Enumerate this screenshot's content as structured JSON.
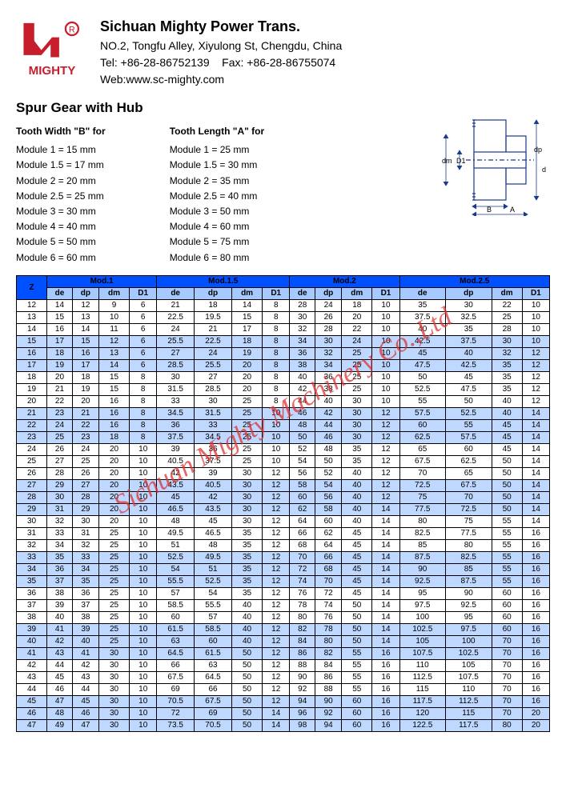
{
  "company": {
    "name": "Sichuan Mighty Power Trans.",
    "address": "NO.2, Tongfu Alley, Xiyulong St, Chengdu, China",
    "tel": "Tel: +86-28-86752139",
    "fax": "Fax: +86-28-86755074",
    "web": "Web:www.sc-mighty.com",
    "logo_text": "MIGHTY",
    "logo_color": "#c81e2b"
  },
  "title": "Spur Gear with Hub",
  "watermark": "Sichuan Mighty Machinery Co.,Ltd",
  "specs": {
    "width": {
      "title": "Tooth Width \"B\" for",
      "items": [
        "Module 1 = 15 mm",
        "Module 1.5 = 17 mm",
        "Module 2 = 20 mm",
        "Module 2.5 = 25 mm",
        "Module 3 = 30 mm",
        "Module 4 = 40 mm",
        "Module 5 = 50 mm",
        "Module 6 = 60 mm"
      ]
    },
    "length": {
      "title": "Tooth Length \"A\" for",
      "items": [
        "Module 1 = 25 mm",
        "Module 1.5 = 30 mm",
        "Module 2 = 35 mm",
        "Module 2.5 = 40 mm",
        "Module 3 = 50 mm",
        "Module 4 = 60 mm",
        "Module 5 = 75 mm",
        "Module 6 = 80 mm"
      ]
    }
  },
  "diagram_labels": {
    "dm": "dm",
    "D1": "D1",
    "dp": "dp",
    "de": "de",
    "B": "B",
    "A": "A"
  },
  "table": {
    "z_header": "Z",
    "mod_headers": [
      "Mod.1",
      "Mod.1.5",
      "Mod.2",
      "Mod.2.5"
    ],
    "sub_headers": [
      "de",
      "dp",
      "dm",
      "D1"
    ],
    "shaded_z": [
      15,
      16,
      17,
      21,
      22,
      23,
      27,
      28,
      29,
      33,
      34,
      35,
      39,
      40,
      41,
      45,
      46,
      47
    ],
    "rows": [
      {
        "z": 12,
        "c": [
          14,
          12,
          9,
          6,
          21.0,
          18.0,
          14,
          8,
          28,
          24,
          18,
          10,
          35.0,
          30.0,
          22,
          10
        ]
      },
      {
        "z": 13,
        "c": [
          15,
          13,
          10,
          6,
          22.5,
          19.5,
          15,
          8,
          30,
          26,
          20,
          10,
          37.5,
          32.5,
          25,
          10
        ]
      },
      {
        "z": 14,
        "c": [
          16,
          14,
          11,
          6,
          24.0,
          21.0,
          17,
          8,
          32,
          28,
          22,
          10,
          40.0,
          35.0,
          28,
          10
        ]
      },
      {
        "z": 15,
        "c": [
          17,
          15,
          12,
          6,
          25.5,
          22.5,
          18,
          8,
          34,
          30,
          24,
          10,
          42.5,
          37.5,
          30,
          10
        ]
      },
      {
        "z": 16,
        "c": [
          18,
          16,
          13,
          6,
          27.0,
          24.0,
          19,
          8,
          36,
          32,
          25,
          10,
          45.0,
          40.0,
          32,
          12
        ]
      },
      {
        "z": 17,
        "c": [
          19,
          17,
          14,
          6,
          28.5,
          25.5,
          20,
          8,
          38,
          34,
          25,
          10,
          47.5,
          42.5,
          35,
          12
        ]
      },
      {
        "z": 18,
        "c": [
          20,
          18,
          15,
          8,
          30.0,
          27.0,
          20,
          8,
          40,
          36,
          25,
          10,
          50.0,
          45.0,
          35,
          12
        ]
      },
      {
        "z": 19,
        "c": [
          21,
          19,
          15,
          8,
          31.5,
          28.5,
          20,
          8,
          42,
          38,
          25,
          10,
          52.5,
          47.5,
          35,
          12
        ]
      },
      {
        "z": 20,
        "c": [
          22,
          20,
          16,
          8,
          33.0,
          30.0,
          25,
          8,
          44,
          40,
          30,
          10,
          55.0,
          50.0,
          40,
          12
        ]
      },
      {
        "z": 21,
        "c": [
          23,
          21,
          16,
          8,
          34.5,
          31.5,
          25,
          10,
          46,
          42,
          30,
          12,
          57.5,
          52.5,
          40,
          14
        ]
      },
      {
        "z": 22,
        "c": [
          24,
          22,
          16,
          8,
          36.0,
          33.0,
          25,
          10,
          48,
          44,
          30,
          12,
          60.0,
          55.0,
          45,
          14
        ]
      },
      {
        "z": 23,
        "c": [
          25,
          23,
          18,
          8,
          37.5,
          34.5,
          25,
          10,
          50,
          46,
          30,
          12,
          62.5,
          57.5,
          45,
          14
        ]
      },
      {
        "z": 24,
        "c": [
          26,
          24,
          20,
          10,
          39.0,
          36.0,
          25,
          10,
          52,
          48,
          35,
          12,
          65.0,
          60.0,
          45,
          14
        ]
      },
      {
        "z": 25,
        "c": [
          27,
          25,
          20,
          10,
          40.5,
          37.5,
          25,
          10,
          54,
          50,
          35,
          12,
          67.5,
          62.5,
          50,
          14
        ]
      },
      {
        "z": 26,
        "c": [
          28,
          26,
          20,
          10,
          42.0,
          39.0,
          30,
          12,
          56,
          52,
          40,
          12,
          70.0,
          65.0,
          50,
          14
        ]
      },
      {
        "z": 27,
        "c": [
          29,
          27,
          20,
          10,
          43.5,
          40.5,
          30,
          12,
          58,
          54,
          40,
          12,
          72.5,
          67.5,
          50,
          14
        ]
      },
      {
        "z": 28,
        "c": [
          30,
          28,
          20,
          10,
          45.0,
          42.0,
          30,
          12,
          60,
          56,
          40,
          12,
          75.0,
          70.0,
          50,
          14
        ]
      },
      {
        "z": 29,
        "c": [
          31,
          29,
          20,
          10,
          46.5,
          43.5,
          30,
          12,
          62,
          58,
          40,
          14,
          77.5,
          72.5,
          50,
          14
        ]
      },
      {
        "z": 30,
        "c": [
          32,
          30,
          20,
          10,
          48.0,
          45.0,
          30,
          12,
          64,
          60,
          40,
          14,
          80.0,
          75.0,
          55,
          14
        ]
      },
      {
        "z": 31,
        "c": [
          33,
          31,
          25,
          10,
          49.5,
          46.5,
          35,
          12,
          66,
          62,
          45,
          14,
          82.5,
          77.5,
          55,
          16
        ]
      },
      {
        "z": 32,
        "c": [
          34,
          32,
          25,
          10,
          51.0,
          48.0,
          35,
          12,
          68,
          64,
          45,
          14,
          85.0,
          80.0,
          55,
          16
        ]
      },
      {
        "z": 33,
        "c": [
          35,
          33,
          25,
          10,
          52.5,
          49.5,
          35,
          12,
          70,
          66,
          45,
          14,
          87.5,
          82.5,
          55,
          16
        ]
      },
      {
        "z": 34,
        "c": [
          36,
          34,
          25,
          10,
          54.0,
          51.0,
          35,
          12,
          72,
          68,
          45,
          14,
          90.0,
          85.0,
          55,
          16
        ]
      },
      {
        "z": 35,
        "c": [
          37,
          35,
          25,
          10,
          55.5,
          52.5,
          35,
          12,
          74,
          70,
          45,
          14,
          92.5,
          87.5,
          55,
          16
        ]
      },
      {
        "z": 36,
        "c": [
          38,
          36,
          25,
          10,
          57.0,
          54.0,
          35,
          12,
          76,
          72,
          45,
          14,
          95.0,
          90.0,
          60,
          16
        ]
      },
      {
        "z": 37,
        "c": [
          39,
          37,
          25,
          10,
          58.5,
          55.5,
          40,
          12,
          78,
          74,
          50,
          14,
          97.5,
          92.5,
          60,
          16
        ]
      },
      {
        "z": 38,
        "c": [
          40,
          38,
          25,
          10,
          60.0,
          57.0,
          40,
          12,
          80,
          76,
          50,
          14,
          100.0,
          95.0,
          60,
          16
        ]
      },
      {
        "z": 39,
        "c": [
          41,
          39,
          25,
          10,
          61.5,
          58.5,
          40,
          12,
          82,
          78,
          50,
          14,
          102.5,
          97.5,
          60,
          16
        ]
      },
      {
        "z": 40,
        "c": [
          42,
          40,
          25,
          10,
          63.0,
          60.0,
          40,
          12,
          84,
          80,
          50,
          14,
          105.0,
          100.0,
          70,
          16
        ]
      },
      {
        "z": 41,
        "c": [
          43,
          41,
          30,
          10,
          64.5,
          61.5,
          50,
          12,
          86,
          82,
          55,
          16,
          107.5,
          102.5,
          70,
          16
        ]
      },
      {
        "z": 42,
        "c": [
          44,
          42,
          30,
          10,
          66.0,
          63.0,
          50,
          12,
          88,
          84,
          55,
          16,
          110.0,
          105.0,
          70,
          16
        ]
      },
      {
        "z": 43,
        "c": [
          45,
          43,
          30,
          10,
          67.5,
          64.5,
          50,
          12,
          90,
          86,
          55,
          16,
          112.5,
          107.5,
          70,
          16
        ]
      },
      {
        "z": 44,
        "c": [
          46,
          44,
          30,
          10,
          69.0,
          66.0,
          50,
          12,
          92,
          88,
          55,
          16,
          115.0,
          110.0,
          70,
          16
        ]
      },
      {
        "z": 45,
        "c": [
          47,
          45,
          30,
          10,
          70.5,
          67.5,
          50,
          12,
          94,
          90,
          60,
          16,
          117.5,
          112.5,
          70,
          16
        ]
      },
      {
        "z": 46,
        "c": [
          48,
          46,
          30,
          10,
          72.0,
          69.0,
          50,
          14,
          96,
          92,
          60,
          16,
          120.0,
          115.0,
          70,
          20
        ]
      },
      {
        "z": 47,
        "c": [
          49,
          47,
          30,
          10,
          73.5,
          70.5,
          50,
          14,
          98,
          94,
          60,
          16,
          122.5,
          117.5,
          80,
          20
        ]
      }
    ]
  },
  "colors": {
    "header_bg": "#0050ff",
    "subheader_bg": "#a6caff",
    "row_shade": "#bfd8ff",
    "logo": "#c81e2b",
    "diagram_stroke": "#1a3a8a"
  }
}
